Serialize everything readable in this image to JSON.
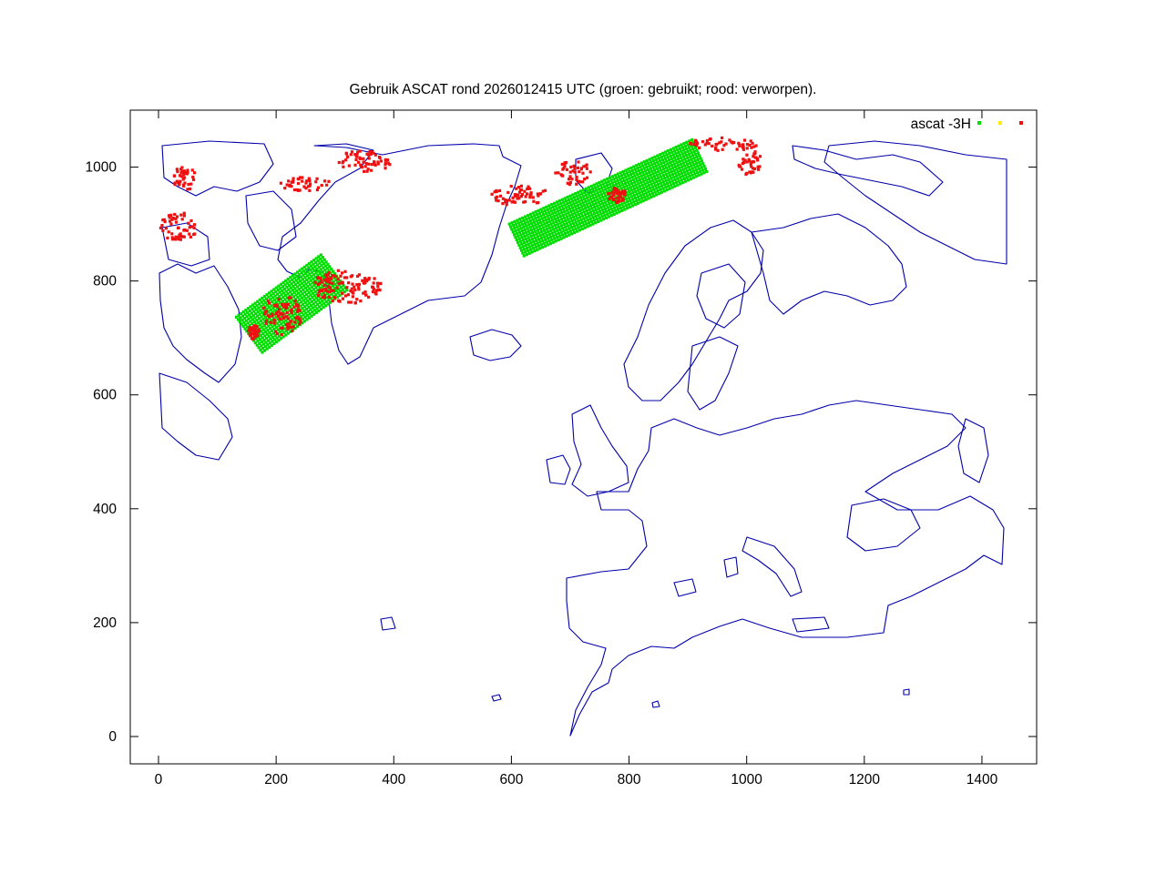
{
  "chart_data": {
    "type": "scatter",
    "title": "Gebruik ASCAT rond 2026012415 UTC (groen: gebruikt; rood: verworpen).",
    "xlabel": "",
    "ylabel": "",
    "xlim": [
      -48,
      1493
    ],
    "ylim": [
      -48,
      1100
    ],
    "x_ticks": [
      0,
      200,
      400,
      600,
      800,
      1000,
      1200,
      1400
    ],
    "y_ticks": [
      0,
      200,
      400,
      600,
      800,
      1000
    ],
    "x_tick_labels": [
      "0",
      "200",
      "400",
      "600",
      "800",
      "1000",
      "1200",
      "1400"
    ],
    "y_tick_labels": [
      "0",
      "200",
      "400",
      "600",
      "800",
      "1000"
    ],
    "grid": false,
    "legend_position": "top-right",
    "legend": {
      "title": "ascat -3H",
      "entries": [
        "used",
        "questionable",
        "rejected"
      ]
    },
    "colors": {
      "used": "#00dd00",
      "questionable": "#ffee00",
      "rejected": "#ee1111",
      "coastline": "#0000aa",
      "axes": "#000000"
    },
    "series": [
      {
        "key": "used",
        "note": "band centre lines and half-widths in data units",
        "bands": [
          {
            "p1": [
              610,
              870
            ],
            "p2": [
              925,
              1020
            ],
            "half_width": 32
          },
          {
            "p1": [
              155,
              705
            ],
            "p2": [
              300,
              815
            ],
            "half_width": 38
          }
        ]
      },
      {
        "key": "rejected",
        "regions": [
          {
            "x": 45,
            "y": 980,
            "rx": 20,
            "ry": 22
          },
          {
            "x": 35,
            "y": 895,
            "rx": 32,
            "ry": 25
          },
          {
            "x": 250,
            "y": 970,
            "rx": 45,
            "ry": 12
          },
          {
            "x": 350,
            "y": 1010,
            "rx": 45,
            "ry": 20
          },
          {
            "x": 615,
            "y": 950,
            "rx": 50,
            "ry": 18
          },
          {
            "x": 705,
            "y": 990,
            "rx": 30,
            "ry": 22
          },
          {
            "x": 780,
            "y": 950,
            "rx": 16,
            "ry": 14
          },
          {
            "x": 960,
            "y": 1040,
            "rx": 60,
            "ry": 12
          },
          {
            "x": 1005,
            "y": 1010,
            "rx": 22,
            "ry": 25
          },
          {
            "x": 320,
            "y": 790,
            "rx": 60,
            "ry": 30
          },
          {
            "x": 210,
            "y": 740,
            "rx": 35,
            "ry": 35
          },
          {
            "x": 162,
            "y": 710,
            "rx": 10,
            "ry": 12
          }
        ]
      }
    ]
  }
}
